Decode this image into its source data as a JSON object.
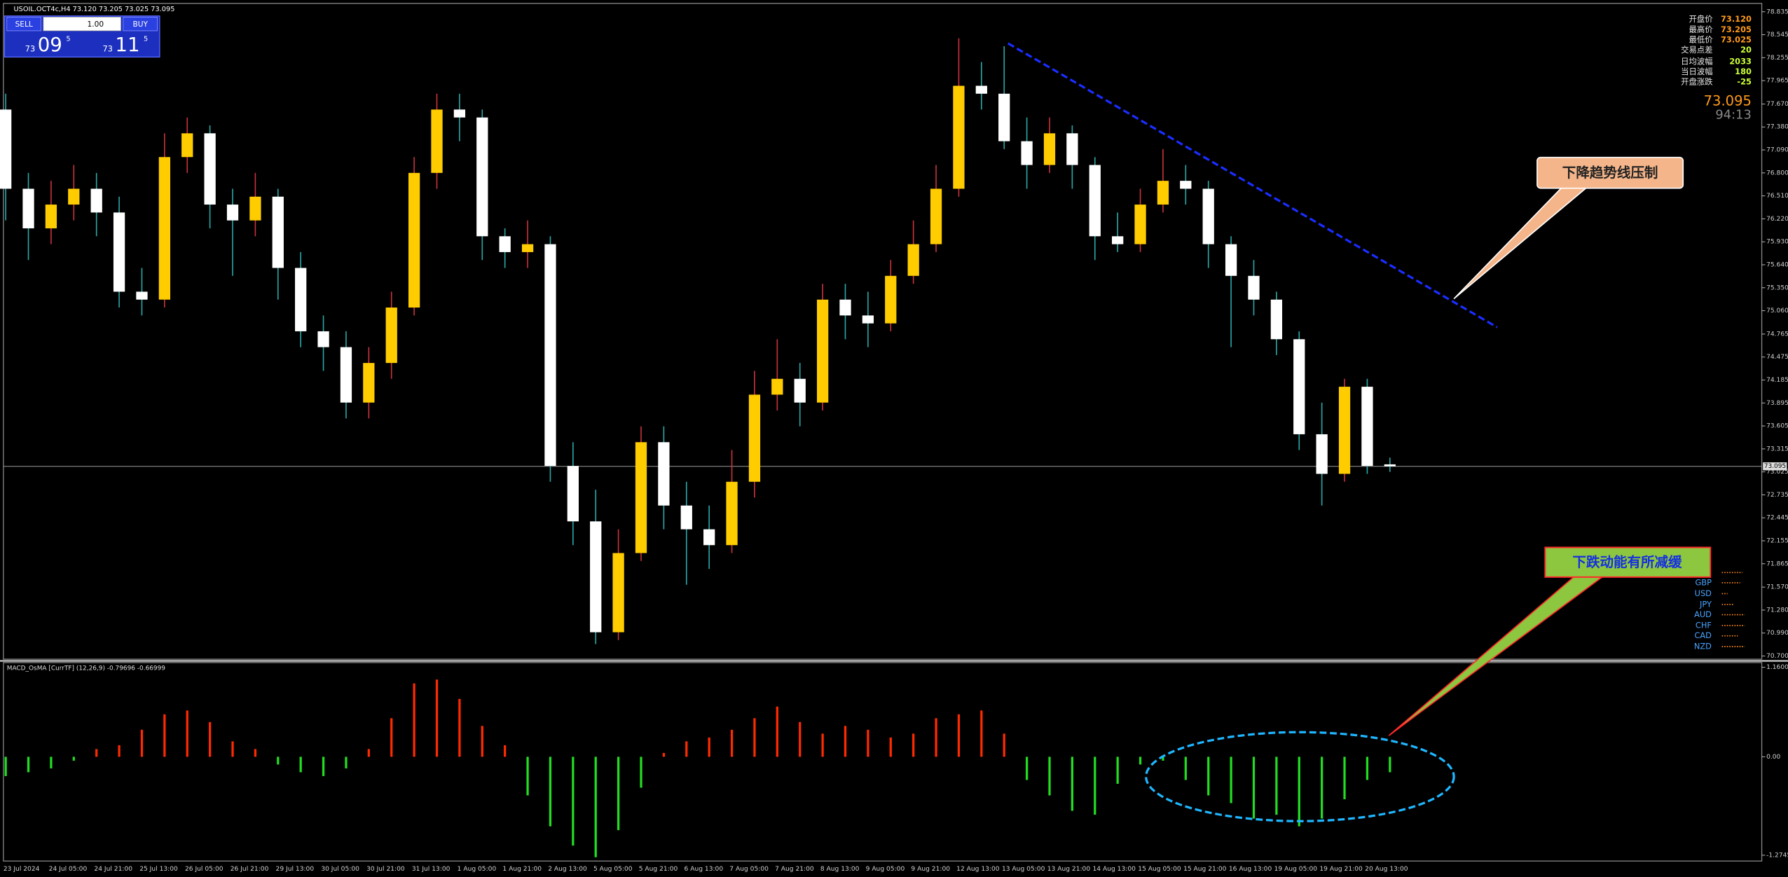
{
  "toolbar": {
    "symbol": "USOIL.OCT4c,H4  73.120 73.205 73.025 73.095",
    "sell": "SELL",
    "buy": "BUY",
    "lot": "1.00",
    "bid_prefix": "73",
    "bid_big": "09",
    "bid_sup": "5",
    "ask_prefix": "73",
    "ask_big": "11",
    "ask_sup": "5"
  },
  "info_panel": {
    "rows": [
      [
        "开盘价",
        "73.120"
      ],
      [
        "最高价",
        "73.205"
      ],
      [
        "最低价",
        "73.025"
      ],
      [
        "交易点差",
        "20"
      ],
      [
        "日均波幅",
        "2033"
      ],
      [
        "当日波幅",
        "180"
      ],
      [
        "开盘涨跌",
        "-25"
      ]
    ],
    "price": "73.095",
    "timer": "94:13"
  },
  "annotations": {
    "trend": "下降趋势线压制",
    "momentum": "下跌动能有所减缓"
  },
  "currencies": [
    "GBP",
    "USD",
    "JPY",
    "AUD",
    "CHF",
    "CAD",
    "NZD"
  ],
  "chart_data": {
    "type": "candlestick",
    "x": [
      "23 Jul 2024",
      null,
      "24 Jul 05:00",
      null,
      "24 Jul 21:00",
      null,
      "25 Jul 13:00",
      null,
      "26 Jul 05:00",
      null,
      "26 Jul 21:00",
      null,
      "29 Jul 13:00",
      null,
      "30 Jul 05:00",
      null,
      "30 Jul 21:00",
      null,
      "31 Jul 13:00",
      null,
      "1 Aug 05:00",
      null,
      "1 Aug 21:00",
      null,
      "2 Aug 13:00",
      null,
      "5 Aug 05:00",
      null,
      "5 Aug 21:00",
      null,
      "6 Aug 13:00",
      null,
      "7 Aug 05:00",
      null,
      "7 Aug 21:00",
      null,
      "8 Aug 13:00",
      null,
      "9 Aug 05:00",
      null,
      "9 Aug 21:00",
      null,
      "12 Aug 13:00",
      null,
      "13 Aug 05:00",
      null,
      "13 Aug 21:00",
      null,
      "14 Aug 13:00",
      null,
      "15 Aug 05:00",
      null,
      "15 Aug 21:00",
      null,
      "16 Aug 13:00",
      null,
      "19 Aug 05:00",
      null,
      "19 Aug 21:00",
      null,
      "20 Aug 13:00",
      null
    ],
    "open": [
      77.6,
      76.6,
      76.1,
      76.4,
      76.6,
      76.3,
      75.3,
      75.2,
      77.0,
      77.3,
      76.4,
      76.2,
      76.5,
      75.6,
      74.8,
      74.6,
      73.9,
      74.4,
      75.1,
      76.8,
      77.6,
      77.5,
      76.0,
      75.8,
      75.9,
      73.1,
      72.4,
      71.0,
      72.0,
      73.4,
      72.6,
      72.3,
      72.1,
      72.9,
      74.0,
      74.2,
      73.9,
      75.2,
      75.0,
      74.9,
      75.5,
      75.9,
      76.6,
      77.9,
      77.8,
      77.2,
      76.9,
      77.3,
      76.9,
      76.0,
      75.9,
      76.4,
      76.7,
      76.6,
      75.9,
      75.5,
      75.2,
      74.7,
      73.5,
      73.0,
      74.1,
      73.12
    ],
    "high": [
      77.8,
      76.8,
      76.7,
      76.9,
      76.8,
      76.5,
      75.6,
      77.3,
      77.5,
      77.4,
      76.6,
      76.8,
      76.6,
      75.8,
      75.0,
      74.8,
      74.6,
      75.3,
      77.0,
      77.8,
      77.8,
      77.6,
      76.1,
      76.2,
      76.0,
      73.4,
      72.8,
      72.3,
      73.6,
      73.6,
      72.9,
      72.6,
      73.3,
      74.3,
      74.7,
      74.4,
      75.4,
      75.4,
      75.3,
      75.7,
      76.2,
      76.9,
      78.5,
      78.2,
      78.4,
      77.5,
      77.5,
      77.4,
      77.0,
      76.3,
      76.6,
      77.1,
      76.9,
      76.7,
      76.0,
      75.7,
      75.3,
      74.8,
      73.9,
      74.2,
      74.2,
      73.205
    ],
    "low": [
      76.2,
      75.7,
      75.9,
      76.2,
      76.0,
      75.1,
      75.0,
      75.1,
      76.8,
      76.1,
      75.5,
      76.0,
      75.2,
      74.6,
      74.3,
      73.7,
      73.7,
      74.2,
      75.0,
      76.6,
      77.2,
      75.7,
      75.6,
      75.6,
      72.9,
      72.1,
      70.85,
      70.9,
      71.9,
      72.3,
      71.6,
      71.8,
      72.0,
      72.7,
      73.8,
      73.6,
      73.8,
      74.7,
      74.6,
      74.8,
      75.4,
      75.8,
      76.5,
      77.6,
      77.1,
      76.6,
      76.8,
      76.6,
      75.7,
      75.8,
      75.8,
      76.3,
      76.4,
      75.6,
      74.6,
      75.0,
      74.5,
      73.3,
      72.6,
      72.9,
      73.0,
      73.025
    ],
    "close": [
      76.6,
      76.1,
      76.4,
      76.6,
      76.3,
      75.3,
      75.2,
      77.0,
      77.3,
      76.4,
      76.2,
      76.5,
      75.6,
      74.8,
      74.6,
      73.9,
      74.4,
      75.1,
      76.8,
      77.6,
      77.5,
      76.0,
      75.8,
      75.9,
      73.1,
      72.4,
      71.0,
      72.0,
      73.4,
      72.6,
      72.3,
      72.1,
      72.9,
      74.0,
      74.2,
      73.9,
      75.2,
      75.0,
      74.9,
      75.5,
      75.9,
      76.6,
      77.9,
      77.8,
      77.2,
      76.9,
      77.3,
      76.9,
      76.0,
      75.9,
      76.4,
      76.7,
      76.6,
      75.9,
      75.5,
      75.2,
      74.7,
      73.5,
      73.0,
      74.1,
      73.1,
      73.095
    ],
    "up_color": "#ffcc00",
    "down_color": "#ffffff",
    "ylim": [
      70.66,
      78.94
    ],
    "yticks": [
      78.835,
      78.545,
      78.255,
      77.965,
      {
        "value": 77.67,
        "label": "77.670"
      },
      {
        "value": 77.38,
        "label": "77.380"
      },
      {
        "value": 77.09,
        "label": "77.090"
      },
      {
        "value": 76.8,
        "label": "76.800"
      },
      {
        "value": 76.51,
        "label": "76.510"
      },
      {
        "value": 76.22,
        "label": "76.220"
      },
      {
        "value": 75.93,
        "label": "75.930"
      },
      {
        "value": 75.64,
        "label": "75.640"
      },
      {
        "value": 75.35,
        "label": "75.350"
      },
      {
        "value": 75.06,
        "label": "75.060"
      },
      74.765,
      74.475,
      74.185,
      73.895,
      73.605,
      73.315,
      73.025,
      72.735,
      72.445,
      72.155,
      71.865,
      {
        "value": 71.57,
        "label": "71.570"
      },
      {
        "value": 71.28,
        "label": "71.280"
      },
      {
        "value": 70.99,
        "label": "70.990"
      },
      {
        "value": 70.7,
        "label": "70.700"
      }
    ],
    "current_price": 73.095,
    "indicator": {
      "label": "MACD_OsMA [CurrTF] (12,26,9) -0.79696 -0.66999",
      "values": [
        -0.25,
        -0.2,
        -0.15,
        -0.05,
        0.1,
        0.15,
        0.35,
        0.55,
        0.6,
        0.45,
        0.2,
        0.1,
        -0.1,
        -0.2,
        -0.25,
        -0.15,
        0.1,
        0.5,
        0.95,
        1.0,
        0.75,
        0.4,
        0.15,
        -0.5,
        -0.9,
        -1.15,
        -1.3,
        -0.95,
        -0.4,
        0.05,
        0.2,
        0.25,
        0.35,
        0.5,
        0.65,
        0.45,
        0.3,
        0.4,
        0.35,
        0.25,
        0.3,
        0.5,
        0.55,
        0.6,
        0.3,
        -0.3,
        -0.5,
        -0.7,
        -0.75,
        -0.35,
        -0.1,
        -0.05,
        -0.3,
        -0.5,
        -0.6,
        -0.8,
        -0.75,
        -0.9,
        -0.8,
        -0.55,
        -0.3,
        -0.2
      ],
      "pos_color": "#ff2a00",
      "neg_color": "#22dd22",
      "ylim": [
        -1.35,
        1.22
      ],
      "yticks": [
        {
          "value": 1.16,
          "label": "1.1600"
        },
        {
          "value": 0,
          "label": "0.00"
        },
        -1.2745
      ]
    }
  }
}
